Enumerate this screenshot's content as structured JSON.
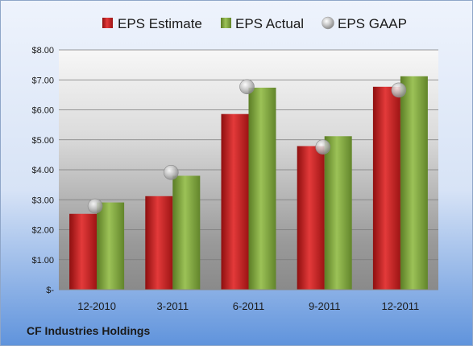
{
  "company": "CF Industries Holdings",
  "colors": {
    "estimate": "#cc1f1f",
    "actual": "#7fa83a",
    "gaap": "#b8b8b8",
    "background_top": "#e6eefb",
    "background_bottom": "#5f93dc"
  },
  "chart_data": {
    "type": "bar",
    "categories": [
      "12-2010",
      "3-2011",
      "6-2011",
      "9-2011",
      "12-2011"
    ],
    "series": [
      {
        "name": "EPS Estimate",
        "values": [
          2.53,
          3.12,
          5.86,
          4.79,
          6.77
        ]
      },
      {
        "name": "EPS Actual",
        "values": [
          2.91,
          3.8,
          6.74,
          5.12,
          7.12
        ]
      },
      {
        "name": "EPS GAAP",
        "values": [
          2.79,
          3.91,
          6.77,
          4.76,
          6.66
        ]
      }
    ],
    "ylim": [
      0,
      8
    ],
    "yticks": [
      0,
      1,
      2,
      3,
      4,
      5,
      6,
      7,
      8
    ],
    "ytick_labels": [
      "$-",
      "$1.00",
      "$2.00",
      "$3.00",
      "$4.00",
      "$5.00",
      "$6.00",
      "$7.00",
      "$8.00"
    ],
    "grid": true,
    "legend_position": "top-center"
  }
}
